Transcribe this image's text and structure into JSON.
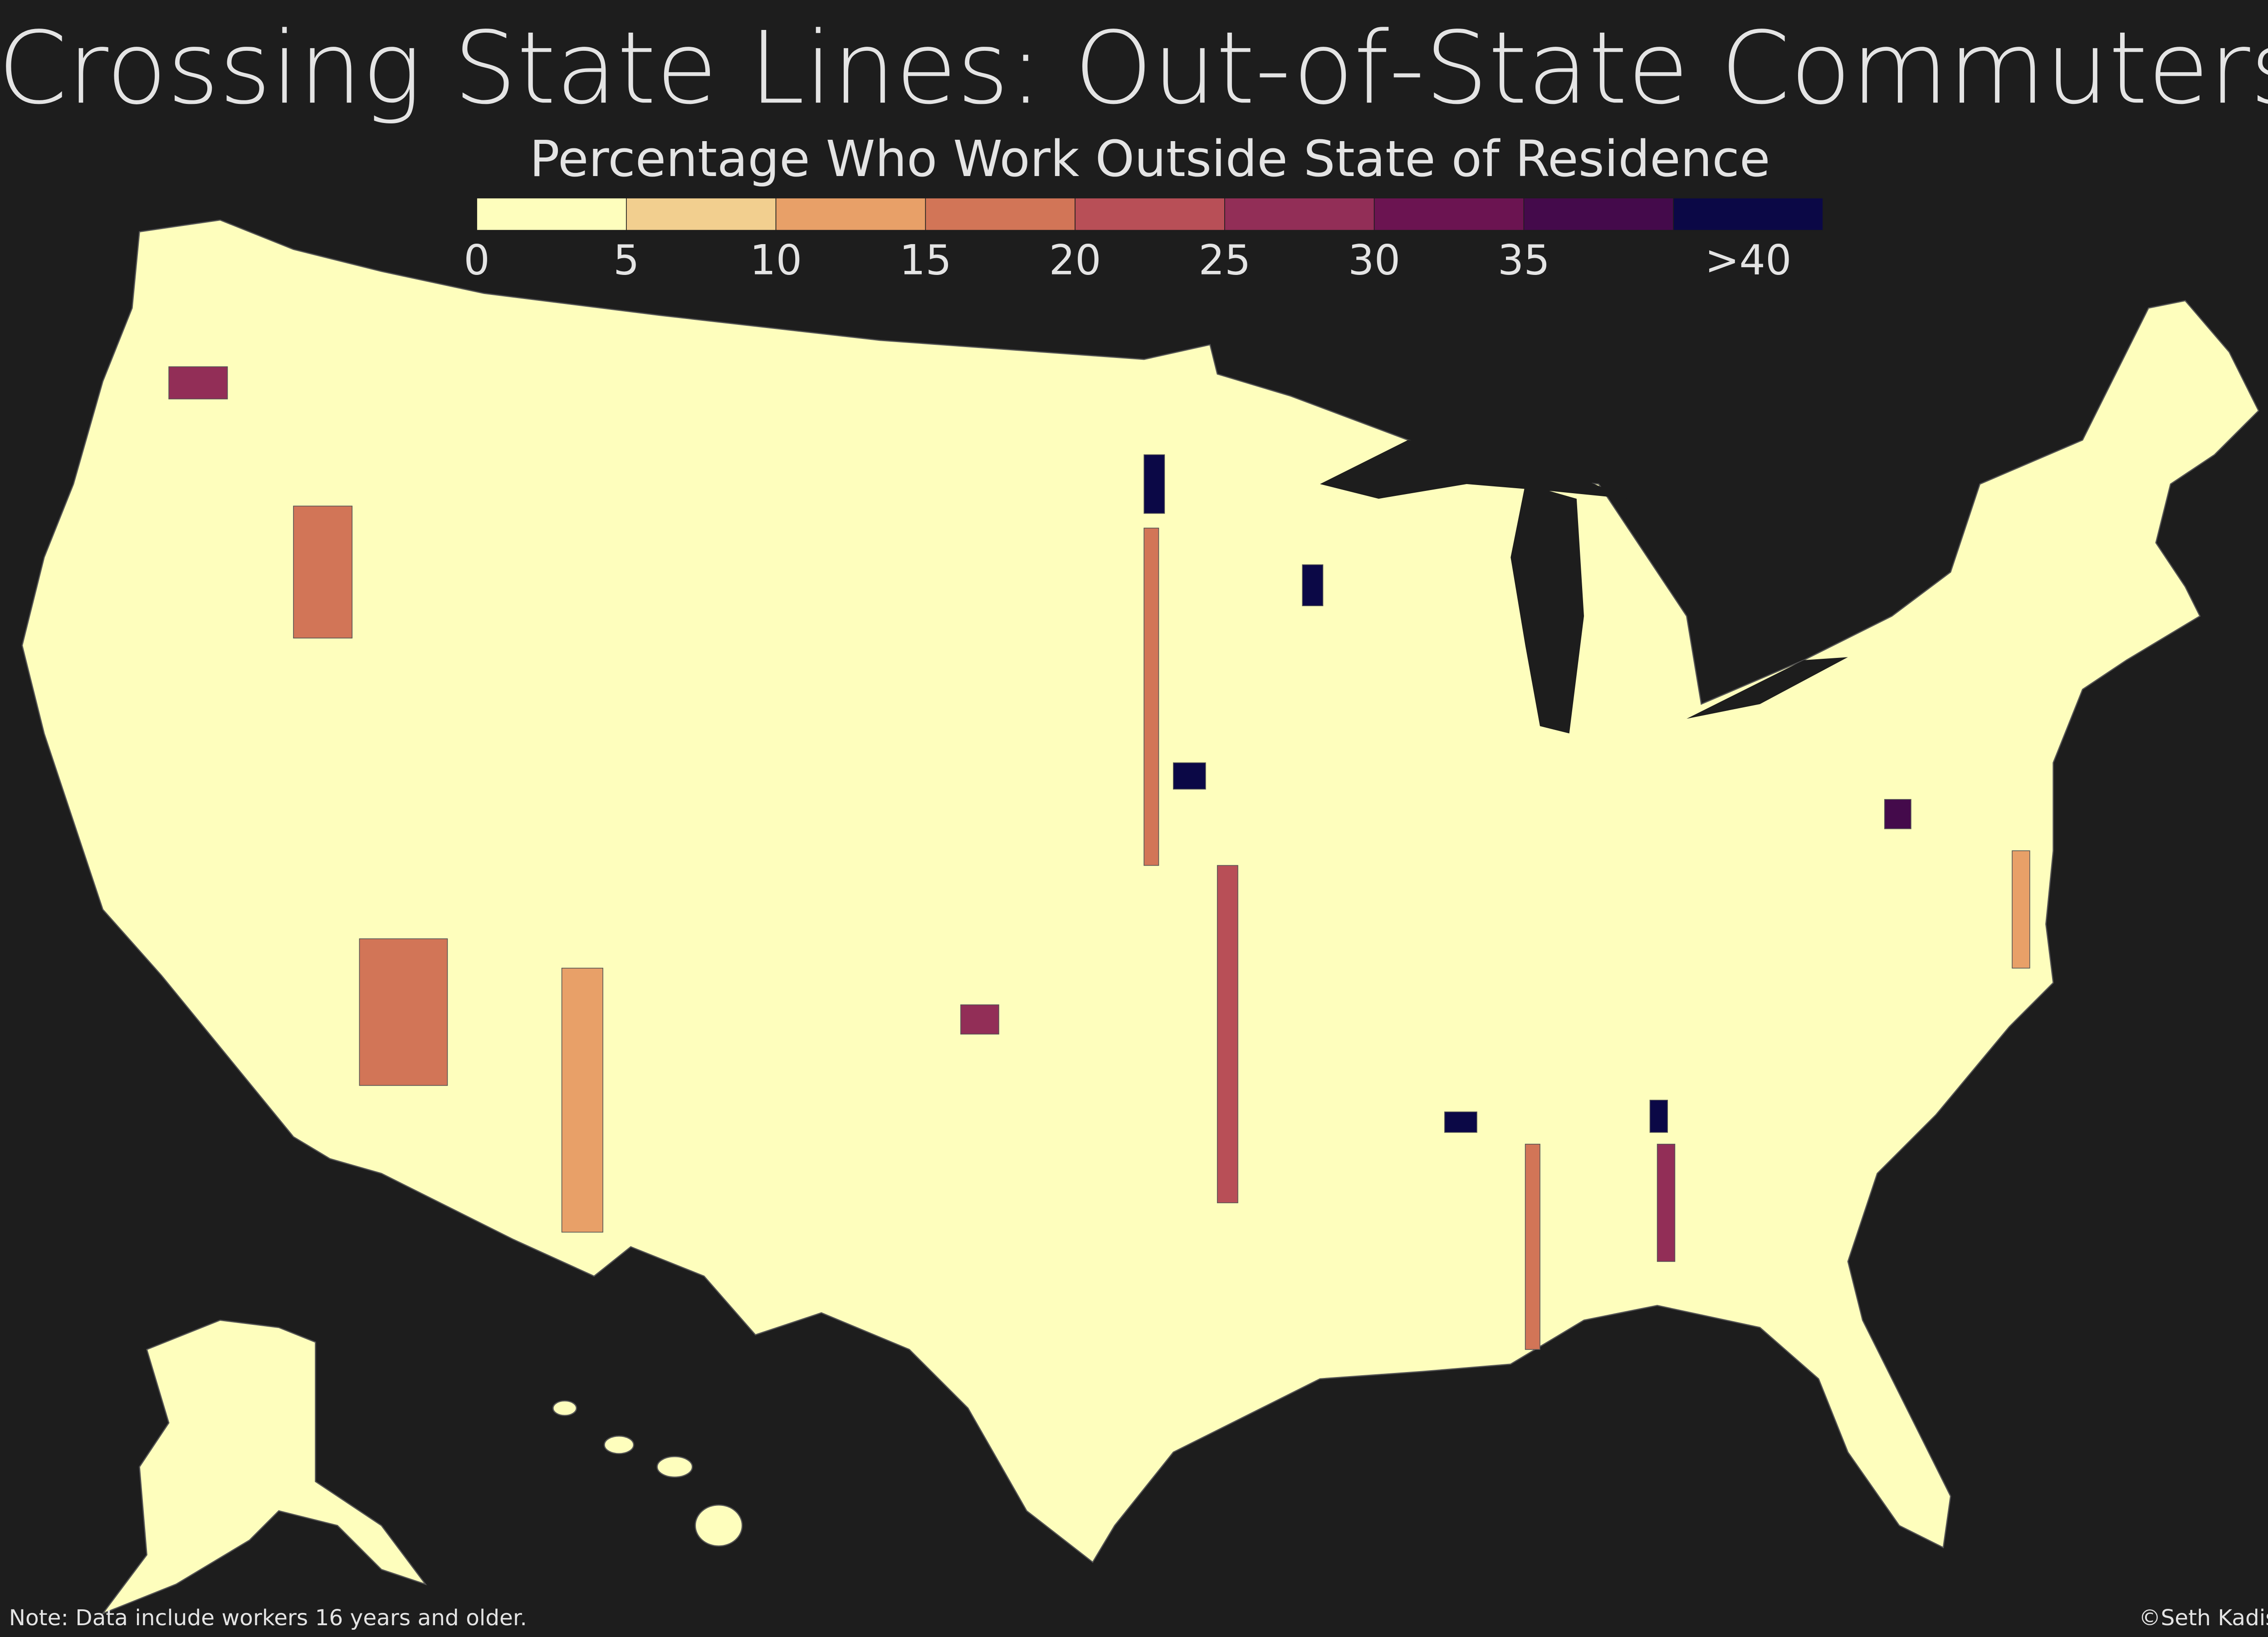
{
  "title": "Crossing State Lines: Out-of-State Commuters",
  "subtitle": "Percentage Who Work Outside State of Residence",
  "legend": {
    "colors": [
      "#fefebd",
      "#f2cf8f",
      "#e8a068",
      "#d27557",
      "#b84f57",
      "#922e57",
      "#6b1451",
      "#440a4b",
      "#0b0846"
    ],
    "ticks": [
      0,
      5,
      10,
      15,
      20,
      25,
      30,
      35,
      {
        "value": 40,
        "label": ">40"
      }
    ]
  },
  "note": "Note: Data include workers 16 years and older.",
  "credit": "©Seth Kadish"
}
